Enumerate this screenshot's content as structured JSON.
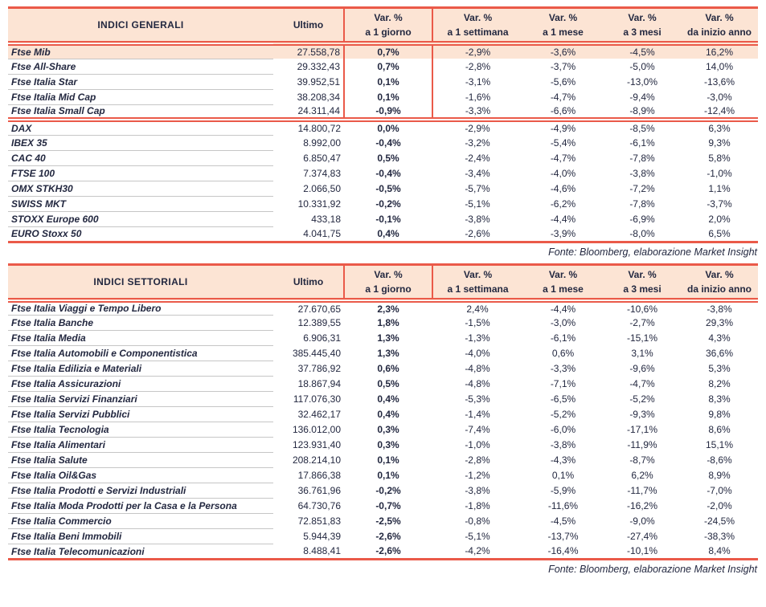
{
  "colors": {
    "accent_red": "#ea5a49",
    "header_bg": "#fce4d4",
    "highlight_row_bg": "#fce4d4",
    "text": "#232840",
    "row_divider": "#c6c6c6"
  },
  "labels": {
    "ultimo": "Ultimo",
    "var_columns": [
      {
        "key": "1-giorno",
        "line1": "Var. %",
        "line2": "a 1 giorno"
      },
      {
        "key": "1-settimana",
        "line1": "Var. %",
        "line2": "a 1 settimana"
      },
      {
        "key": "1-mese",
        "line1": "Var. %",
        "line2": "a 1 mese"
      },
      {
        "key": "3-mesi",
        "line1": "Var. %",
        "line2": "a 3 mesi"
      },
      {
        "key": "inizio-anno",
        "line1": "Var. %",
        "line2": "da inizio anno"
      }
    ]
  },
  "table1": {
    "title": "INDICI GENERALI",
    "source": "Fonte: Bloomberg, elaborazione Market Insight",
    "groups": [
      {
        "d1_borders": true,
        "rows": [
          {
            "name": "Ftse Mib",
            "highlight": true,
            "ultimo": "27.558,78",
            "d1": "0,7%",
            "w1": "-2,9%",
            "m1": "-3,6%",
            "m3": "-4,5%",
            "ytd": "16,2%"
          },
          {
            "name": "Ftse All-Share",
            "ultimo": "29.332,43",
            "d1": "0,7%",
            "w1": "-2,8%",
            "m1": "-3,7%",
            "m3": "-5,0%",
            "ytd": "14,0%"
          },
          {
            "name": "Ftse Italia Star",
            "ultimo": "39.952,51",
            "d1": "0,1%",
            "w1": "-3,1%",
            "m1": "-5,6%",
            "m3": "-13,0%",
            "ytd": "-13,6%"
          },
          {
            "name": "Ftse Italia Mid Cap",
            "ultimo": "38.208,34",
            "d1": "0,1%",
            "w1": "-1,6%",
            "m1": "-4,7%",
            "m3": "-9,4%",
            "ytd": "-3,0%"
          },
          {
            "name": "Ftse Italia Small Cap",
            "ultimo": "24.311,44",
            "d1": "-0,9%",
            "w1": "-3,3%",
            "m1": "-6,6%",
            "m3": "-8,9%",
            "ytd": "-12,4%"
          }
        ]
      },
      {
        "d1_borders": false,
        "rows": [
          {
            "name": "DAX",
            "ultimo": "14.800,72",
            "d1": "0,0%",
            "w1": "-2,9%",
            "m1": "-4,9%",
            "m3": "-8,5%",
            "ytd": "6,3%"
          },
          {
            "name": "IBEX 35",
            "ultimo": "8.992,00",
            "d1": "-0,4%",
            "w1": "-3,2%",
            "m1": "-5,4%",
            "m3": "-6,1%",
            "ytd": "9,3%"
          },
          {
            "name": "CAC 40",
            "ultimo": "6.850,47",
            "d1": "0,5%",
            "w1": "-2,4%",
            "m1": "-4,7%",
            "m3": "-7,8%",
            "ytd": "5,8%"
          },
          {
            "name": "FTSE 100",
            "ultimo": "7.374,83",
            "d1": "-0,4%",
            "w1": "-3,4%",
            "m1": "-4,0%",
            "m3": "-3,8%",
            "ytd": "-1,0%"
          },
          {
            "name": "OMX STKH30",
            "ultimo": "2.066,50",
            "d1": "-0,5%",
            "w1": "-5,7%",
            "m1": "-4,6%",
            "m3": "-7,2%",
            "ytd": "1,1%"
          },
          {
            "name": "SWISS MKT",
            "ultimo": "10.331,92",
            "d1": "-0,2%",
            "w1": "-5,1%",
            "m1": "-6,2%",
            "m3": "-7,8%",
            "ytd": "-3,7%"
          },
          {
            "name": "STOXX Europe 600",
            "ultimo": "433,18",
            "d1": "-0,1%",
            "w1": "-3,8%",
            "m1": "-4,4%",
            "m3": "-6,9%",
            "ytd": "2,0%"
          },
          {
            "name": "EURO Stoxx 50",
            "ultimo": "4.041,75",
            "d1": "0,4%",
            "w1": "-2,6%",
            "m1": "-3,9%",
            "m3": "-8,0%",
            "ytd": "6,5%"
          }
        ]
      }
    ]
  },
  "table2": {
    "title": "INDICI SETTORIALI",
    "source": "Fonte: Bloomberg, elaborazione Market Insight",
    "groups": [
      {
        "d1_borders": false,
        "rows": [
          {
            "name": "Ftse Italia Viaggi e Tempo Libero",
            "ultimo": "27.670,65",
            "d1": "2,3%",
            "w1": "2,4%",
            "m1": "-4,4%",
            "m3": "-10,6%",
            "ytd": "-3,8%"
          },
          {
            "name": "Ftse Italia Banche",
            "ultimo": "12.389,55",
            "d1": "1,8%",
            "w1": "-1,5%",
            "m1": "-3,0%",
            "m3": "-2,7%",
            "ytd": "29,3%"
          },
          {
            "name": "Ftse Italia Media",
            "ultimo": "6.906,31",
            "d1": "1,3%",
            "w1": "-1,3%",
            "m1": "-6,1%",
            "m3": "-15,1%",
            "ytd": "4,3%"
          },
          {
            "name": "Ftse Italia Automobili e Componentistica",
            "ultimo": "385.445,40",
            "d1": "1,3%",
            "w1": "-4,0%",
            "m1": "0,6%",
            "m3": "3,1%",
            "ytd": "36,6%"
          },
          {
            "name": "Ftse Italia Edilizia e Materiali",
            "ultimo": "37.786,92",
            "d1": "0,6%",
            "w1": "-4,8%",
            "m1": "-3,3%",
            "m3": "-9,6%",
            "ytd": "5,3%"
          },
          {
            "name": "Ftse Italia Assicurazioni",
            "ultimo": "18.867,94",
            "d1": "0,5%",
            "w1": "-4,8%",
            "m1": "-7,1%",
            "m3": "-4,7%",
            "ytd": "8,2%"
          },
          {
            "name": "Ftse Italia Servizi Finanziari",
            "ultimo": "117.076,30",
            "d1": "0,4%",
            "w1": "-5,3%",
            "m1": "-6,5%",
            "m3": "-5,2%",
            "ytd": "8,3%"
          },
          {
            "name": "Ftse Italia Servizi Pubblici",
            "ultimo": "32.462,17",
            "d1": "0,4%",
            "w1": "-1,4%",
            "m1": "-5,2%",
            "m3": "-9,3%",
            "ytd": "9,8%"
          },
          {
            "name": "Ftse Italia Tecnologia",
            "ultimo": "136.012,00",
            "d1": "0,3%",
            "w1": "-7,4%",
            "m1": "-6,0%",
            "m3": "-17,1%",
            "ytd": "8,6%"
          },
          {
            "name": "Ftse Italia Alimentari",
            "ultimo": "123.931,40",
            "d1": "0,3%",
            "w1": "-1,0%",
            "m1": "-3,8%",
            "m3": "-11,9%",
            "ytd": "15,1%"
          },
          {
            "name": "Ftse Italia Salute",
            "ultimo": "208.214,10",
            "d1": "0,1%",
            "w1": "-2,8%",
            "m1": "-4,3%",
            "m3": "-8,7%",
            "ytd": "-8,6%"
          },
          {
            "name": "Ftse Italia Oil&Gas",
            "ultimo": "17.866,38",
            "d1": "0,1%",
            "w1": "-1,2%",
            "m1": "0,1%",
            "m3": "6,2%",
            "ytd": "8,9%"
          },
          {
            "name": "Ftse Italia Prodotti e Servizi Industriali",
            "ultimo": "36.761,96",
            "d1": "-0,2%",
            "w1": "-3,8%",
            "m1": "-5,9%",
            "m3": "-11,7%",
            "ytd": "-7,0%"
          },
          {
            "name": "Ftse Italia Moda Prodotti per la Casa e la Persona",
            "ultimo": "64.730,76",
            "d1": "-0,7%",
            "w1": "-1,8%",
            "m1": "-11,6%",
            "m3": "-16,2%",
            "ytd": "-2,0%"
          },
          {
            "name": "Ftse Italia Commercio",
            "ultimo": "72.851,83",
            "d1": "-2,5%",
            "w1": "-0,8%",
            "m1": "-4,5%",
            "m3": "-9,0%",
            "ytd": "-24,5%"
          },
          {
            "name": "Ftse Italia Beni Immobili",
            "ultimo": "5.944,39",
            "d1": "-2,6%",
            "w1": "-5,1%",
            "m1": "-13,7%",
            "m3": "-27,4%",
            "ytd": "-38,3%"
          },
          {
            "name": "Ftse Italia Telecomunicazioni",
            "ultimo": "8.488,41",
            "d1": "-2,6%",
            "w1": "-4,2%",
            "m1": "-16,4%",
            "m3": "-10,1%",
            "ytd": "8,4%"
          }
        ]
      }
    ]
  }
}
